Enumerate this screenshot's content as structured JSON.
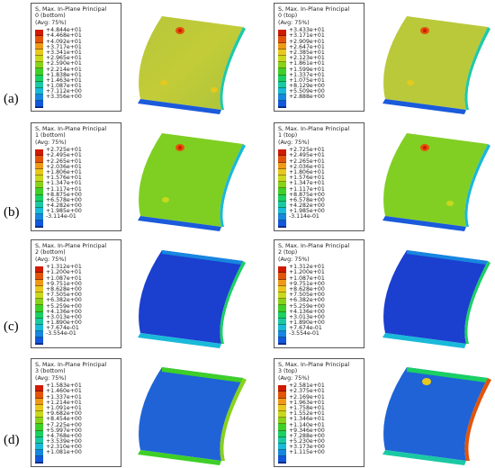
{
  "legend_colors": [
    "#cf1a00",
    "#e2540a",
    "#ee9a17",
    "#e7c81c",
    "#c8d81c",
    "#88d21a",
    "#3ecf28",
    "#1ad063",
    "#1ac9a3",
    "#19b9d9",
    "#1786e0",
    "#1257dc",
    "#0f35c8"
  ],
  "rows": [
    {
      "label": "(a)",
      "panels": [
        {
          "title": "S, Max. In-Plane Principal",
          "layer": "0 (bottom)",
          "avg": "(Avg: 75%)",
          "values": [
            "+4.844e+01",
            "+4.468e+01",
            "+4.092e+01",
            "+3.717e+01",
            "+3.341e+01",
            "+2.965e+01",
            "+2.590e+01",
            "+2.214e+01",
            "+1.838e+01",
            "+1.463e+01",
            "+1.087e+01",
            "+7.112e+00",
            "+3.356e+00"
          ]
        },
        {
          "title": "S, Max. In-Plane Principal",
          "layer": "0 (top)",
          "avg": "(Avg: 75%)",
          "values": [
            "+3.433e+01",
            "+3.171e+01",
            "+2.909e+01",
            "+2.647e+01",
            "+2.385e+01",
            "+2.123e+01",
            "+1.861e+01",
            "+1.599e+01",
            "+1.337e+01",
            "+1.075e+01",
            "+8.129e+00",
            "+5.509e+00",
            "+2.888e+00"
          ]
        }
      ]
    },
    {
      "label": "(b)",
      "panels": [
        {
          "title": "S, Max. In-Plane Principal",
          "layer": "1 (bottom)",
          "avg": "(Avg: 75%)",
          "values": [
            "+2.725e+01",
            "+2.495e+01",
            "+2.265e+01",
            "+2.036e+01",
            "+1.806e+01",
            "+1.576e+01",
            "+1.347e+01",
            "+1.117e+01",
            "+8.875e+00",
            "+6.578e+00",
            "+4.282e+00",
            "+1.985e+00",
            "-3.114e-01"
          ]
        },
        {
          "title": "S, Max. In-Plane Principal",
          "layer": "1 (top)",
          "avg": "(Avg: 75%)",
          "values": [
            "+2.725e+01",
            "+2.495e+01",
            "+2.265e+01",
            "+2.036e+01",
            "+1.806e+01",
            "+1.576e+01",
            "+1.347e+01",
            "+1.117e+01",
            "+8.875e+00",
            "+6.578e+00",
            "+4.282e+00",
            "+1.985e+00",
            "-3.114e-01"
          ]
        }
      ]
    },
    {
      "label": "(c)",
      "panels": [
        {
          "title": "S, Max. In-Plane Principal",
          "layer": "2 (bottom)",
          "avg": "(Avg: 75%)",
          "values": [
            "+1.312e+01",
            "+1.200e+01",
            "+1.087e+01",
            "+9.751e+00",
            "+8.628e+00",
            "+7.505e+00",
            "+6.382e+00",
            "+5.259e+00",
            "+4.136e+00",
            "+3.013e+00",
            "+1.890e+00",
            "+7.674e-01",
            "-3.554e-01"
          ]
        },
        {
          "title": "S, Max. In-Plane Principal",
          "layer": "2 (top)",
          "avg": "(Avg: 75%)",
          "values": [
            "+1.312e+01",
            "+1.200e+01",
            "+1.087e+01",
            "+9.751e+00",
            "+8.628e+00",
            "+7.505e+00",
            "+6.382e+00",
            "+5.259e+00",
            "+4.136e+00",
            "+3.013e+00",
            "+1.890e+00",
            "+7.674e-01",
            "-3.554e-01"
          ]
        }
      ]
    },
    {
      "label": "(d)",
      "panels": [
        {
          "title": "S, Max. In-Plane Principal",
          "layer": "3 (bottom)",
          "avg": "(Avg: 75%)",
          "values": [
            "+1.583e+01",
            "+1.460e+01",
            "+1.337e+01",
            "+1.214e+01",
            "+1.091e+01",
            "+9.682e+00",
            "+8.454e+00",
            "+7.225e+00",
            "+5.997e+00",
            "+4.768e+00",
            "+3.539e+00",
            "+2.310e+00",
            "+1.081e+00"
          ]
        },
        {
          "title": "S, Max. In-Plane Principal",
          "layer": "3 (top)",
          "avg": "(Avg: 75%)",
          "values": [
            "+2.581e+01",
            "+2.375e+01",
            "+2.169e+01",
            "+1.963e+01",
            "+1.758e+01",
            "+1.552e+01",
            "+1.346e+01",
            "+1.140e+01",
            "+9.346e+00",
            "+7.288e+00",
            "+5.230e+00",
            "+3.173e+00",
            "+1.115e+00"
          ]
        }
      ]
    }
  ]
}
